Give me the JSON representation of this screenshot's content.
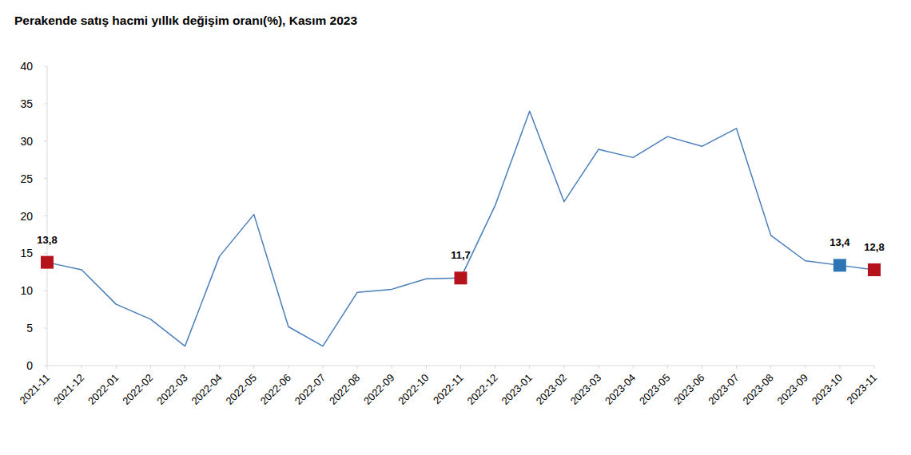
{
  "chart_data": {
    "type": "line",
    "title": "Perakende satış hacmi yıllık değişim oranı(%), Kasım 2023",
    "categories": [
      "2021-11",
      "2021-12",
      "2022-01",
      "2022-02",
      "2022-03",
      "2022-04",
      "2022-05",
      "2022-06",
      "2022-07",
      "2022-08",
      "2022-09",
      "2022-10",
      "2022-11",
      "2022-12",
      "2023-01",
      "2023-02",
      "2023-03",
      "2023-04",
      "2023-05",
      "2023-06",
      "2023-07",
      "2023-08",
      "2023-09",
      "2023-10",
      "2023-11"
    ],
    "values": [
      13.8,
      12.8,
      8.2,
      6.2,
      2.6,
      14.6,
      20.2,
      5.2,
      2.6,
      9.8,
      10.2,
      11.6,
      11.7,
      21.4,
      34.0,
      21.9,
      28.9,
      27.8,
      30.6,
      29.3,
      31.7,
      17.4,
      14.0,
      13.4,
      12.8
    ],
    "value_labels": [
      "13,8",
      null,
      null,
      null,
      null,
      null,
      null,
      null,
      null,
      null,
      null,
      null,
      "11,7",
      null,
      null,
      null,
      null,
      null,
      null,
      null,
      null,
      null,
      null,
      "13,4",
      "12,8"
    ],
    "colors": [
      "#b5121b",
      null,
      null,
      null,
      null,
      null,
      null,
      null,
      null,
      null,
      null,
      null,
      "#b5121b",
      null,
      null,
      null,
      null,
      null,
      null,
      null,
      null,
      null,
      null,
      "#2e75b6",
      "#b5121b"
    ],
    "color": "#4a7ebb",
    "marker": "square",
    "data_labels": true,
    "ylim": [
      0,
      40
    ],
    "yticks": [
      0,
      5,
      10,
      15,
      20,
      25,
      30,
      35,
      40
    ],
    "grid": false
  }
}
